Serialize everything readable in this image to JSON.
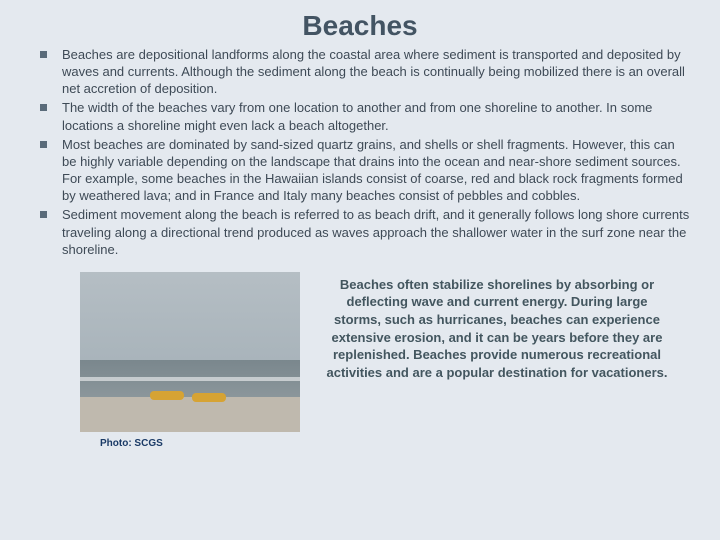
{
  "colors": {
    "slide_bg": "#e4e9ef",
    "title_color": "#435463",
    "body_text": "#3e4a56",
    "bullet_color": "#5a6b7a",
    "caption_color": "#43565f",
    "credit_color": "#1a3a66",
    "kayak_color": "#d6a334"
  },
  "title": "Beaches",
  "bullets": [
    "Beaches are depositional landforms along the coastal area where sediment is transported and deposited by waves and currents. Although the sediment along the beach is continually being mobilized there is an overall net accretion of deposition.",
    "The width of the beaches vary from one location to another and from one shoreline to another. In some locations a shoreline might even lack a beach altogether.",
    "Most beaches are dominated by sand-sized quartz grains, and shells or shell fragments. However, this can be highly variable depending on the landscape that drains into the ocean and near-shore sediment sources. For example, some beaches in the Hawaiian islands consist of coarse, red and black rock fragments formed by weathered lava; and in France and Italy many beaches consist of pebbles and cobbles.",
    "Sediment movement along the beach is referred to as beach drift, and it generally follows long shore currents traveling along a directional trend produced as waves approach the shallower water in the surf zone near the shoreline."
  ],
  "caption": "Beaches often stabilize shorelines by absorbing or deflecting wave and current energy. During large storms, such as hurricanes, beaches can experience extensive erosion, and it can be years before they are replenished. Beaches provide numerous recreational activities and are a popular destination for vacationers.",
  "photo_credit": "Photo: SCGS"
}
